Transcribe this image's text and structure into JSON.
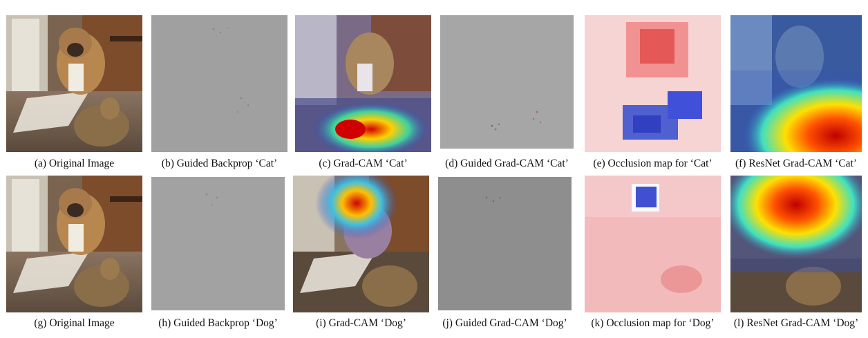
{
  "figure": {
    "rows": [
      {
        "panels": [
          {
            "kind": "photo",
            "caption": "(a) Original Image"
          },
          {
            "kind": "gray",
            "caption": "(b) Guided Backprop ‘Cat’"
          },
          {
            "kind": "gradcam-cat",
            "caption": "(c) Grad-CAM ‘Cat’"
          },
          {
            "kind": "guided-gradcam-cat",
            "caption": "(d) Guided Grad-CAM ‘Cat’"
          },
          {
            "kind": "occlusion-cat",
            "caption": "(e) Occlusion map for ‘Cat’"
          },
          {
            "kind": "resnet-cat",
            "caption": "(f) ResNet Grad-CAM ‘Cat’"
          }
        ]
      },
      {
        "panels": [
          {
            "kind": "photo",
            "caption": "(g) Original Image"
          },
          {
            "kind": "gray",
            "caption": "(h) Guided Backprop ‘Dog’"
          },
          {
            "kind": "gradcam-dog",
            "caption": "(i) Grad-CAM ‘Dog’"
          },
          {
            "kind": "guided-gradcam-dog",
            "caption": "(j) Guided Grad-CAM ‘Dog’"
          },
          {
            "kind": "occlusion-dog",
            "caption": "(k) Occlusion map for ‘Dog’"
          },
          {
            "kind": "resnet-dog",
            "caption": "(l) ResNet Grad-CAM ‘Dog’"
          }
        ]
      }
    ]
  }
}
